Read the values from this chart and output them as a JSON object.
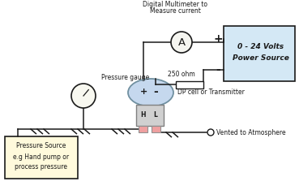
{
  "fig_width": 3.69,
  "fig_height": 2.34,
  "dpi": 100,
  "bg_color": "#ffffff",
  "line_color": "#1a1a1a",
  "power_box_color": "#d4e8f5",
  "pressure_box_color": "#fffadc",
  "dp_ellipse_color": "#c5d8ee",
  "resistor_color": "#ffffff",
  "port_color": "#f0a0a0",
  "labels": {
    "digital_multimeter_line1": "Digital Multimeter to",
    "digital_multimeter_line2": "Measure current",
    "ammeter": "A",
    "resistor": "250 ohm",
    "power_source_line1": "0 - 24 Volts",
    "power_source_line2": "Power Source",
    "power_plus": "+",
    "power_minus": "-",
    "dp_plus": "+",
    "dp_minus": "-",
    "dp_label": "DP cell or Transmitter",
    "pressure_gauge_label": "Pressure gauge",
    "port_H": "H",
    "port_L": "L",
    "vented": "Vented to Atmosphere",
    "pressure_source_line1": "Pressure Source",
    "pressure_source_line2": "e.g Hand pump or",
    "pressure_source_line3": "process pressure"
  },
  "fs_tiny": 5.5,
  "fs_small": 6.5,
  "fs_med": 8.0,
  "fs_large": 9.5
}
